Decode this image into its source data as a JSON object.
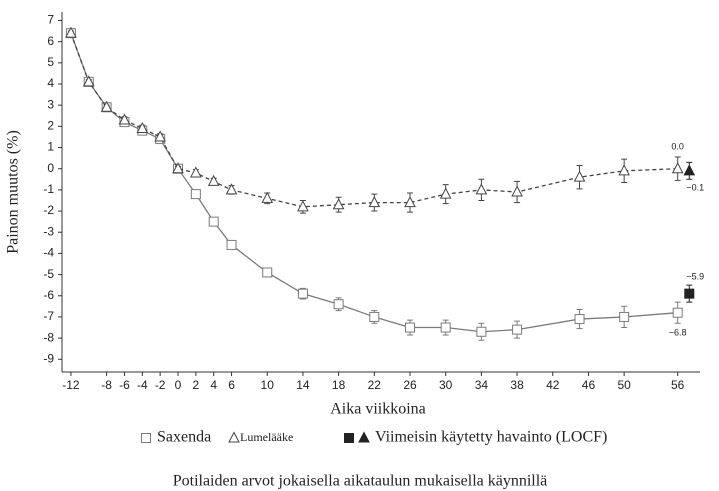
{
  "chart_data": {
    "type": "line",
    "y_label": "Painon muutos (%)",
    "x_label": "Aika viikkoina",
    "note": "Potilaiden arvot jokaisella aikataulun mukaisella käynnillä",
    "xlim": [
      -13,
      58.5
    ],
    "ylim": [
      -9.6,
      7.4
    ],
    "xticks": [
      -12,
      -8,
      -6,
      -4,
      -2,
      0,
      2,
      4,
      6,
      10,
      14,
      18,
      22,
      26,
      30,
      34,
      38,
      42,
      46,
      50,
      56
    ],
    "yticks": [
      7,
      6,
      5,
      4,
      3,
      2,
      1,
      0,
      -1,
      -2,
      -3,
      -4,
      -5,
      -6,
      -7,
      -8,
      -9
    ],
    "series": [
      {
        "name": "Saxenda",
        "color": "#7a7a7a",
        "marker": "square",
        "dash": false,
        "x": [
          -12,
          -10,
          -8,
          -6,
          -4,
          -2,
          0,
          2,
          4,
          6,
          10,
          14,
          18,
          22,
          26,
          30,
          34,
          38,
          45,
          50,
          56
        ],
        "values": [
          6.4,
          4.1,
          2.9,
          2.2,
          1.8,
          1.4,
          0,
          -1.2,
          -2.5,
          -3.6,
          -4.9,
          -5.9,
          -6.4,
          -7.0,
          -7.5,
          -7.5,
          -7.7,
          -7.6,
          -7.1,
          -7.0,
          -6.8
        ],
        "errors": [
          0.1,
          0.1,
          0.1,
          0.15,
          0.15,
          0.15,
          0.1,
          0.15,
          0.15,
          0.2,
          0.2,
          0.25,
          0.3,
          0.3,
          0.35,
          0.35,
          0.4,
          0.4,
          0.45,
          0.5,
          0.5
        ],
        "value_labels": [
          null,
          null,
          null,
          null,
          null,
          null,
          null,
          null,
          null,
          null,
          null,
          null,
          null,
          null,
          null,
          null,
          null,
          null,
          null,
          null,
          "−6.8"
        ]
      },
      {
        "name": "Lumelääke",
        "color": "#444444",
        "marker": "triangle",
        "dash": true,
        "x": [
          -12,
          -10,
          -8,
          -6,
          -4,
          -2,
          0,
          2,
          4,
          6,
          10,
          14,
          18,
          22,
          26,
          30,
          34,
          38,
          45,
          50,
          56
        ],
        "values": [
          6.4,
          4.1,
          2.9,
          2.3,
          1.9,
          1.5,
          0,
          -0.2,
          -0.6,
          -1.0,
          -1.4,
          -1.8,
          -1.7,
          -1.6,
          -1.6,
          -1.2,
          -1.0,
          -1.1,
          -0.4,
          -0.1,
          0.0
        ],
        "errors": [
          0.1,
          0.1,
          0.1,
          0.15,
          0.15,
          0.15,
          0.1,
          0.15,
          0.15,
          0.2,
          0.25,
          0.3,
          0.35,
          0.4,
          0.45,
          0.45,
          0.5,
          0.5,
          0.55,
          0.55,
          0.55
        ],
        "value_labels": [
          null,
          null,
          null,
          null,
          null,
          null,
          null,
          null,
          null,
          null,
          null,
          null,
          null,
          null,
          null,
          null,
          null,
          null,
          null,
          null,
          "0.0"
        ]
      }
    ],
    "locf": {
      "name": "Viimeisin käytetty havainto (LOCF)",
      "x": 57.3,
      "points": [
        {
          "marker": "square",
          "color": "#222222",
          "value": -5.9,
          "error": 0.4,
          "value_label": "−5.9"
        },
        {
          "marker": "triangle",
          "color": "#222222",
          "value": -0.1,
          "error": 0.4,
          "value_label": "−0.1"
        }
      ]
    }
  }
}
